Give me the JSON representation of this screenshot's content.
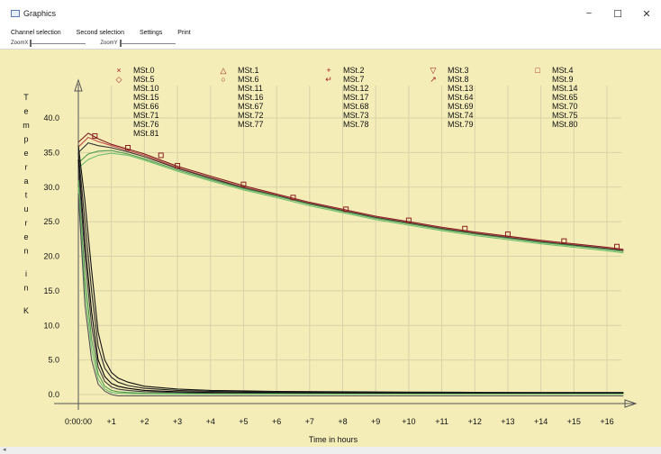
{
  "window": {
    "title": "Graphics",
    "minimize_glyph": "−",
    "maximize_glyph": "☐",
    "close_glyph": "✕"
  },
  "menu": {
    "items": [
      "Channel selection",
      "Second selection",
      "Settings",
      "Print"
    ]
  },
  "zoom": {
    "x_label": "ZoomX",
    "y_label": "ZoomY"
  },
  "chart_data": {
    "type": "line",
    "title": "",
    "xlabel": "Time in hours",
    "ylabel": "Temperaturen in K",
    "x_tick_labels": [
      "0:00:00",
      "+1",
      "+2",
      "+3",
      "+4",
      "+5",
      "+6",
      "+7",
      "+8",
      "+9",
      "+10",
      "+11",
      "+12",
      "+13",
      "+14",
      "+15",
      "+16"
    ],
    "y_tick_labels": [
      "0.0",
      "5.0",
      "10.0",
      "15.0",
      "20.0",
      "25.0",
      "30.0",
      "35.0",
      "40.0"
    ],
    "xlim": [
      0,
      17
    ],
    "ylim": [
      0,
      42
    ],
    "grid": true,
    "legend_position": "top",
    "legend": [
      {
        "name": "MSt.0",
        "marker": "×"
      },
      {
        "name": "MSt.1",
        "marker": "△"
      },
      {
        "name": "MSt.2",
        "marker": "+"
      },
      {
        "name": "MSt.3",
        "marker": "▽"
      },
      {
        "name": "MSt.4",
        "marker": "□"
      },
      {
        "name": "MSt.5",
        "marker": "◇"
      },
      {
        "name": "MSt.6",
        "marker": "○"
      },
      {
        "name": "MSt.7",
        "marker": "↵"
      },
      {
        "name": "MSt.8",
        "marker": "↗"
      },
      {
        "name": "MSt.9",
        "marker": ""
      },
      {
        "name": "MSt.10",
        "marker": ""
      },
      {
        "name": "MSt.11",
        "marker": ""
      },
      {
        "name": "MSt.12",
        "marker": ""
      },
      {
        "name": "MSt.13",
        "marker": ""
      },
      {
        "name": "MSt.14",
        "marker": ""
      },
      {
        "name": "MSt.15",
        "marker": ""
      },
      {
        "name": "MSt.16",
        "marker": ""
      },
      {
        "name": "MSt.17",
        "marker": ""
      },
      {
        "name": "MSt.64",
        "marker": ""
      },
      {
        "name": "MSt.65",
        "marker": ""
      },
      {
        "name": "MSt.66",
        "marker": ""
      },
      {
        "name": "MSt.67",
        "marker": ""
      },
      {
        "name": "MSt.68",
        "marker": ""
      },
      {
        "name": "MSt.69",
        "marker": ""
      },
      {
        "name": "MSt.70",
        "marker": ""
      },
      {
        "name": "MSt.71",
        "marker": ""
      },
      {
        "name": "MSt.72",
        "marker": ""
      },
      {
        "name": "MSt.73",
        "marker": ""
      },
      {
        "name": "MSt.74",
        "marker": ""
      },
      {
        "name": "MSt.75",
        "marker": ""
      },
      {
        "name": "MSt.76",
        "marker": ""
      },
      {
        "name": "MSt.77",
        "marker": ""
      },
      {
        "name": "MSt.78",
        "marker": ""
      },
      {
        "name": "MSt.79",
        "marker": ""
      },
      {
        "name": "MSt.80",
        "marker": ""
      },
      {
        "name": "MSt.81",
        "marker": ""
      }
    ],
    "series": [
      {
        "group": "warm",
        "color": "#7a1a1a",
        "x": [
          0,
          0.3,
          0.6,
          1,
          1.5,
          2,
          3,
          4,
          5,
          6,
          7,
          8,
          9,
          10,
          11,
          12,
          13,
          14,
          15,
          16,
          16.5
        ],
        "y": [
          36.5,
          37.8,
          37.0,
          36.2,
          35.5,
          34.8,
          33.0,
          31.6,
          30.2,
          29.0,
          27.8,
          26.8,
          25.8,
          25.0,
          24.2,
          23.5,
          22.9,
          22.3,
          21.8,
          21.3,
          21.0
        ]
      },
      {
        "group": "warm",
        "color": "#c04a4a",
        "x": [
          0,
          0.3,
          0.6,
          1,
          1.5,
          2,
          3,
          4,
          5,
          6,
          7,
          8,
          9,
          10,
          11,
          12,
          13,
          14,
          15,
          16,
          16.5
        ],
        "y": [
          35.8,
          37.2,
          36.6,
          36.0,
          35.3,
          34.6,
          32.8,
          31.4,
          30.0,
          28.9,
          27.7,
          26.7,
          25.7,
          24.9,
          24.1,
          23.4,
          22.8,
          22.2,
          21.7,
          21.2,
          20.9
        ]
      },
      {
        "group": "warm",
        "color": "#333333",
        "x": [
          0,
          0.3,
          0.6,
          1,
          1.5,
          2,
          3,
          4,
          5,
          6,
          7,
          8,
          9,
          10,
          11,
          12,
          13,
          14,
          15,
          16,
          16.5
        ],
        "y": [
          35.0,
          36.4,
          36.0,
          35.7,
          35.1,
          34.4,
          32.7,
          31.3,
          29.9,
          28.8,
          27.6,
          26.6,
          25.6,
          24.8,
          24.0,
          23.3,
          22.7,
          22.1,
          21.6,
          21.1,
          20.8
        ]
      },
      {
        "group": "warm",
        "color": "#4f9a4f",
        "x": [
          0,
          0.3,
          0.6,
          1,
          1.5,
          2,
          3,
          4,
          5,
          6,
          7,
          8,
          9,
          10,
          11,
          12,
          13,
          14,
          15,
          16,
          16.5
        ],
        "y": [
          33.5,
          34.8,
          35.2,
          35.3,
          34.8,
          34.1,
          32.5,
          31.1,
          29.8,
          28.7,
          27.5,
          26.5,
          25.5,
          24.7,
          23.9,
          23.2,
          22.6,
          22.0,
          21.5,
          21.0,
          20.7
        ]
      },
      {
        "group": "warm",
        "color": "#6fbf6f",
        "x": [
          0,
          0.3,
          0.6,
          1,
          1.5,
          2,
          3,
          4,
          5,
          6,
          7,
          8,
          9,
          10,
          11,
          12,
          13,
          14,
          15,
          16,
          16.5
        ],
        "y": [
          32.8,
          34.0,
          34.6,
          34.9,
          34.6,
          33.9,
          32.3,
          30.9,
          29.6,
          28.5,
          27.3,
          26.3,
          25.3,
          24.5,
          23.7,
          23.0,
          22.4,
          21.8,
          21.3,
          20.8,
          20.5
        ]
      },
      {
        "group": "cold",
        "color": "#111111",
        "x": [
          0,
          0.2,
          0.4,
          0.6,
          0.8,
          1,
          1.2,
          1.5,
          2,
          3,
          4,
          6,
          8,
          10,
          12,
          14,
          16,
          16.5
        ],
        "y": [
          36.0,
          28.0,
          18.0,
          9.0,
          5.0,
          3.2,
          2.4,
          1.8,
          1.2,
          0.8,
          0.6,
          0.45,
          0.4,
          0.35,
          0.32,
          0.3,
          0.3,
          0.3
        ]
      },
      {
        "group": "cold",
        "color": "#222222",
        "x": [
          0,
          0.2,
          0.4,
          0.6,
          0.8,
          1,
          1.2,
          1.5,
          2,
          3,
          4,
          6,
          8,
          10,
          12,
          14,
          16,
          16.5
        ],
        "y": [
          35.0,
          25.0,
          15.0,
          7.0,
          3.8,
          2.5,
          1.8,
          1.3,
          0.9,
          0.6,
          0.45,
          0.35,
          0.3,
          0.28,
          0.25,
          0.24,
          0.22,
          0.22
        ]
      },
      {
        "group": "cold",
        "color": "#000000",
        "x": [
          0,
          0.2,
          0.4,
          0.6,
          0.8,
          1,
          1.2,
          1.5,
          2,
          3,
          4,
          6,
          8,
          10,
          12,
          14,
          16,
          16.5
        ],
        "y": [
          34.0,
          22.0,
          12.0,
          5.0,
          2.6,
          1.6,
          1.2,
          0.9,
          0.6,
          0.4,
          0.3,
          0.25,
          0.22,
          0.2,
          0.2,
          0.2,
          0.2,
          0.2
        ]
      },
      {
        "group": "cold",
        "color": "#3a3a3a",
        "x": [
          0,
          0.2,
          0.4,
          0.6,
          0.8,
          1,
          1.2,
          1.5,
          2,
          3,
          4,
          6,
          8,
          10,
          12,
          14,
          16,
          16.5
        ],
        "y": [
          33.0,
          20.0,
          10.0,
          4.0,
          1.9,
          1.1,
          0.8,
          0.6,
          0.4,
          0.3,
          0.2,
          0.15,
          0.12,
          0.1,
          0.1,
          0.1,
          0.1,
          0.1
        ]
      },
      {
        "group": "cold",
        "color": "#4f9a4f",
        "x": [
          0,
          0.2,
          0.4,
          0.6,
          0.8,
          1,
          1.2,
          1.5,
          2,
          3,
          4,
          6,
          8,
          10,
          12,
          14,
          16,
          16.5
        ],
        "y": [
          31.0,
          17.0,
          8.0,
          3.0,
          1.2,
          0.6,
          0.4,
          0.3,
          0.2,
          0.15,
          0.1,
          0.1,
          0.08,
          0.08,
          0.08,
          0.08,
          0.08,
          0.08
        ]
      },
      {
        "group": "cold",
        "color": "#6fbf6f",
        "x": [
          0,
          0.2,
          0.4,
          0.6,
          0.8,
          1,
          1.2,
          1.5,
          2,
          3,
          4,
          6,
          8,
          10,
          12,
          14,
          16,
          16.5
        ],
        "y": [
          30.0,
          15.0,
          6.5,
          2.2,
          0.8,
          0.3,
          0.2,
          0.15,
          0.1,
          0.08,
          0.06,
          0.05,
          0.05,
          0.05,
          0.05,
          0.05,
          0.05,
          0.05
        ]
      },
      {
        "group": "cold",
        "color": "#555555",
        "x": [
          0,
          0.2,
          0.4,
          0.6,
          0.8,
          1,
          1.2,
          1.5,
          2,
          3,
          4,
          6,
          8,
          10,
          12,
          14,
          16,
          16.5
        ],
        "y": [
          29.0,
          13.0,
          5.0,
          1.5,
          0.5,
          0.0,
          -0.2,
          -0.2,
          -0.2,
          -0.2,
          -0.2,
          -0.2,
          -0.2,
          -0.2,
          -0.2,
          -0.2,
          -0.2,
          -0.2
        ]
      }
    ],
    "marker_points": {
      "x": [
        0.5,
        1.5,
        2.5,
        3,
        5,
        6.5,
        8.1,
        10,
        11.7,
        13,
        14.7,
        16.3
      ],
      "y": [
        37.4,
        35.7,
        34.6,
        33.1,
        30.4,
        28.5,
        26.8,
        25.2,
        24.0,
        23.2,
        22.2,
        21.4
      ]
    }
  }
}
